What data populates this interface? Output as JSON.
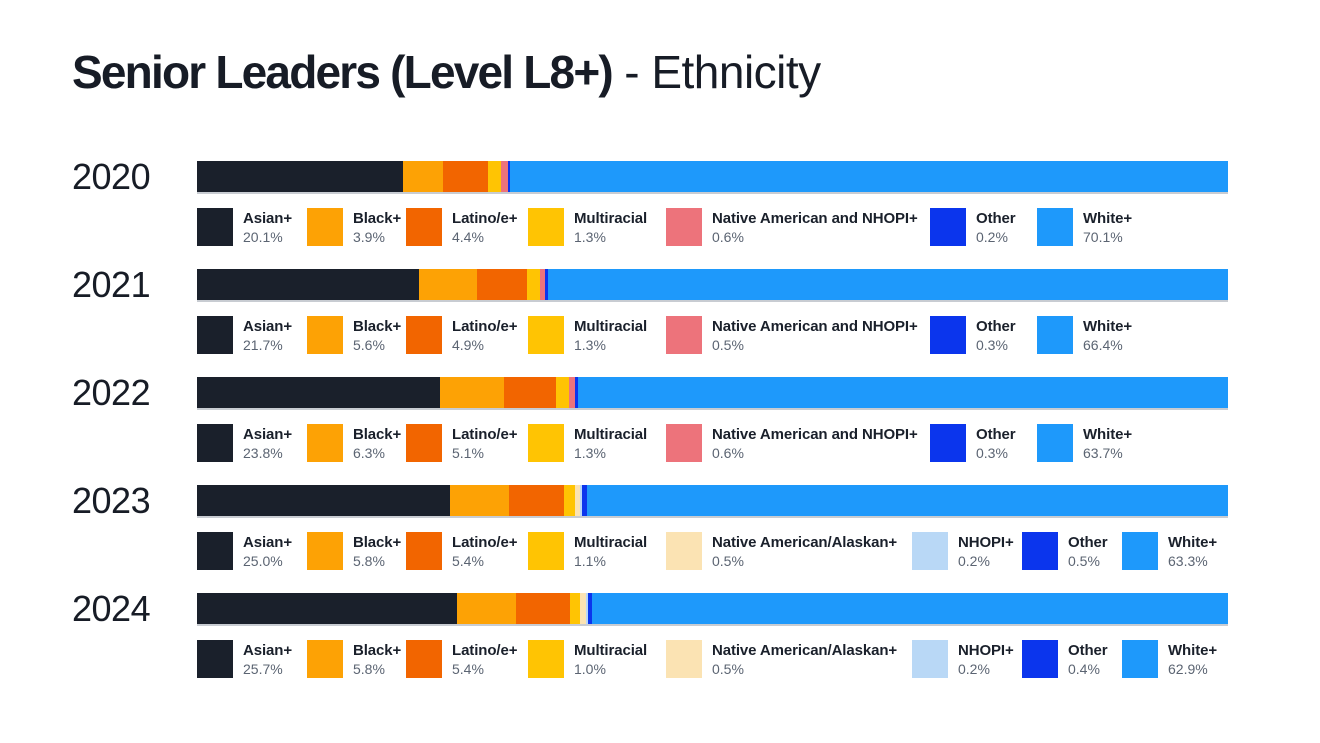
{
  "title": {
    "main": "Senior Leaders (Level L8+)",
    "rest": " - Ethnicity"
  },
  "palette": {
    "Asian+": "#1A202B",
    "Black+": "#FDA205",
    "Latino/e+": "#F26500",
    "Multiracial": "#FFC403",
    "Native American and NHOPI+": "#ED737B",
    "Native American/Alaskan+": "#FBE3B3",
    "NHOPI+": "#B9D8F6",
    "Other": "#0B35ED",
    "White+": "#1E99FB"
  },
  "text_colors": {
    "label": "#1A202B",
    "percent": "#5B6472",
    "year": "#171C26"
  },
  "rows": [
    {
      "year": "2020",
      "segments": [
        {
          "label": "Asian+",
          "value": 20.1,
          "pct": "20.1%"
        },
        {
          "label": "Black+",
          "value": 3.9,
          "pct": "3.9%"
        },
        {
          "label": "Latino/e+",
          "value": 4.4,
          "pct": "4.4%"
        },
        {
          "label": "Multiracial",
          "value": 1.3,
          "pct": "1.3%"
        },
        {
          "label": "Native American and NHOPI+",
          "value": 0.6,
          "pct": "0.6%"
        },
        {
          "label": "Other",
          "value": 0.2,
          "pct": "0.2%"
        },
        {
          "label": "White+",
          "value": 70.1,
          "pct": "70.1%"
        }
      ]
    },
    {
      "year": "2021",
      "segments": [
        {
          "label": "Asian+",
          "value": 21.7,
          "pct": "21.7%"
        },
        {
          "label": "Black+",
          "value": 5.6,
          "pct": "5.6%"
        },
        {
          "label": "Latino/e+",
          "value": 4.9,
          "pct": "4.9%"
        },
        {
          "label": "Multiracial",
          "value": 1.3,
          "pct": "1.3%"
        },
        {
          "label": "Native American and NHOPI+",
          "value": 0.5,
          "pct": "0.5%"
        },
        {
          "label": "Other",
          "value": 0.3,
          "pct": "0.3%"
        },
        {
          "label": "White+",
          "value": 66.4,
          "pct": "66.4%"
        }
      ]
    },
    {
      "year": "2022",
      "segments": [
        {
          "label": "Asian+",
          "value": 23.8,
          "pct": "23.8%"
        },
        {
          "label": "Black+",
          "value": 6.3,
          "pct": "6.3%"
        },
        {
          "label": "Latino/e+",
          "value": 5.1,
          "pct": "5.1%"
        },
        {
          "label": "Multiracial",
          "value": 1.3,
          "pct": "1.3%"
        },
        {
          "label": "Native American and NHOPI+",
          "value": 0.6,
          "pct": "0.6%"
        },
        {
          "label": "Other",
          "value": 0.3,
          "pct": "0.3%"
        },
        {
          "label": "White+",
          "value": 63.7,
          "pct": "63.7%"
        }
      ]
    },
    {
      "year": "2023",
      "segments": [
        {
          "label": "Asian+",
          "value": 25.0,
          "pct": "25.0%"
        },
        {
          "label": "Black+",
          "value": 5.8,
          "pct": "5.8%"
        },
        {
          "label": "Latino/e+",
          "value": 5.4,
          "pct": "5.4%"
        },
        {
          "label": "Multiracial",
          "value": 1.1,
          "pct": "1.1%"
        },
        {
          "label": "Native American/Alaskan+",
          "value": 0.5,
          "pct": "0.5%"
        },
        {
          "label": "NHOPI+",
          "value": 0.2,
          "pct": "0.2%"
        },
        {
          "label": "Other",
          "value": 0.5,
          "pct": "0.5%"
        },
        {
          "label": "White+",
          "value": 63.3,
          "pct": "63.3%"
        }
      ]
    },
    {
      "year": "2024",
      "segments": [
        {
          "label": "Asian+",
          "value": 25.7,
          "pct": "25.7%"
        },
        {
          "label": "Black+",
          "value": 5.8,
          "pct": "5.8%"
        },
        {
          "label": "Latino/e+",
          "value": 5.4,
          "pct": "5.4%"
        },
        {
          "label": "Multiracial",
          "value": 1.0,
          "pct": "1.0%"
        },
        {
          "label": "Native American/Alaskan+",
          "value": 0.5,
          "pct": "0.5%"
        },
        {
          "label": "NHOPI+",
          "value": 0.2,
          "pct": "0.2%"
        },
        {
          "label": "Other",
          "value": 0.4,
          "pct": "0.4%"
        },
        {
          "label": "White+",
          "value": 62.9,
          "pct": "62.9%"
        }
      ]
    }
  ],
  "chart_data": {
    "type": "bar",
    "stacked": true,
    "orientation": "horizontal",
    "title": "Senior Leaders (Level L8+) - Ethnicity",
    "categories": [
      "2020",
      "2021",
      "2022",
      "2023",
      "2024"
    ],
    "unit": "%",
    "xlim": [
      0,
      100
    ],
    "legend_position": "below-each-bar",
    "series": [
      {
        "name": "Asian+",
        "values": [
          20.1,
          21.7,
          23.8,
          25.0,
          25.7
        ]
      },
      {
        "name": "Black+",
        "values": [
          3.9,
          5.6,
          6.3,
          5.8,
          5.8
        ]
      },
      {
        "name": "Latino/e+",
        "values": [
          4.4,
          4.9,
          5.1,
          5.4,
          5.4
        ]
      },
      {
        "name": "Multiracial",
        "values": [
          1.3,
          1.3,
          1.3,
          1.1,
          1.0
        ]
      },
      {
        "name": "Native American and NHOPI+",
        "values": [
          0.6,
          0.5,
          0.6,
          null,
          null
        ]
      },
      {
        "name": "Native American/Alaskan+",
        "values": [
          null,
          null,
          null,
          0.5,
          0.5
        ]
      },
      {
        "name": "NHOPI+",
        "values": [
          null,
          null,
          null,
          0.2,
          0.2
        ]
      },
      {
        "name": "Other",
        "values": [
          0.2,
          0.3,
          0.3,
          0.5,
          0.4
        ]
      },
      {
        "name": "White+",
        "values": [
          70.1,
          66.4,
          63.7,
          63.3,
          62.9
        ]
      }
    ]
  }
}
